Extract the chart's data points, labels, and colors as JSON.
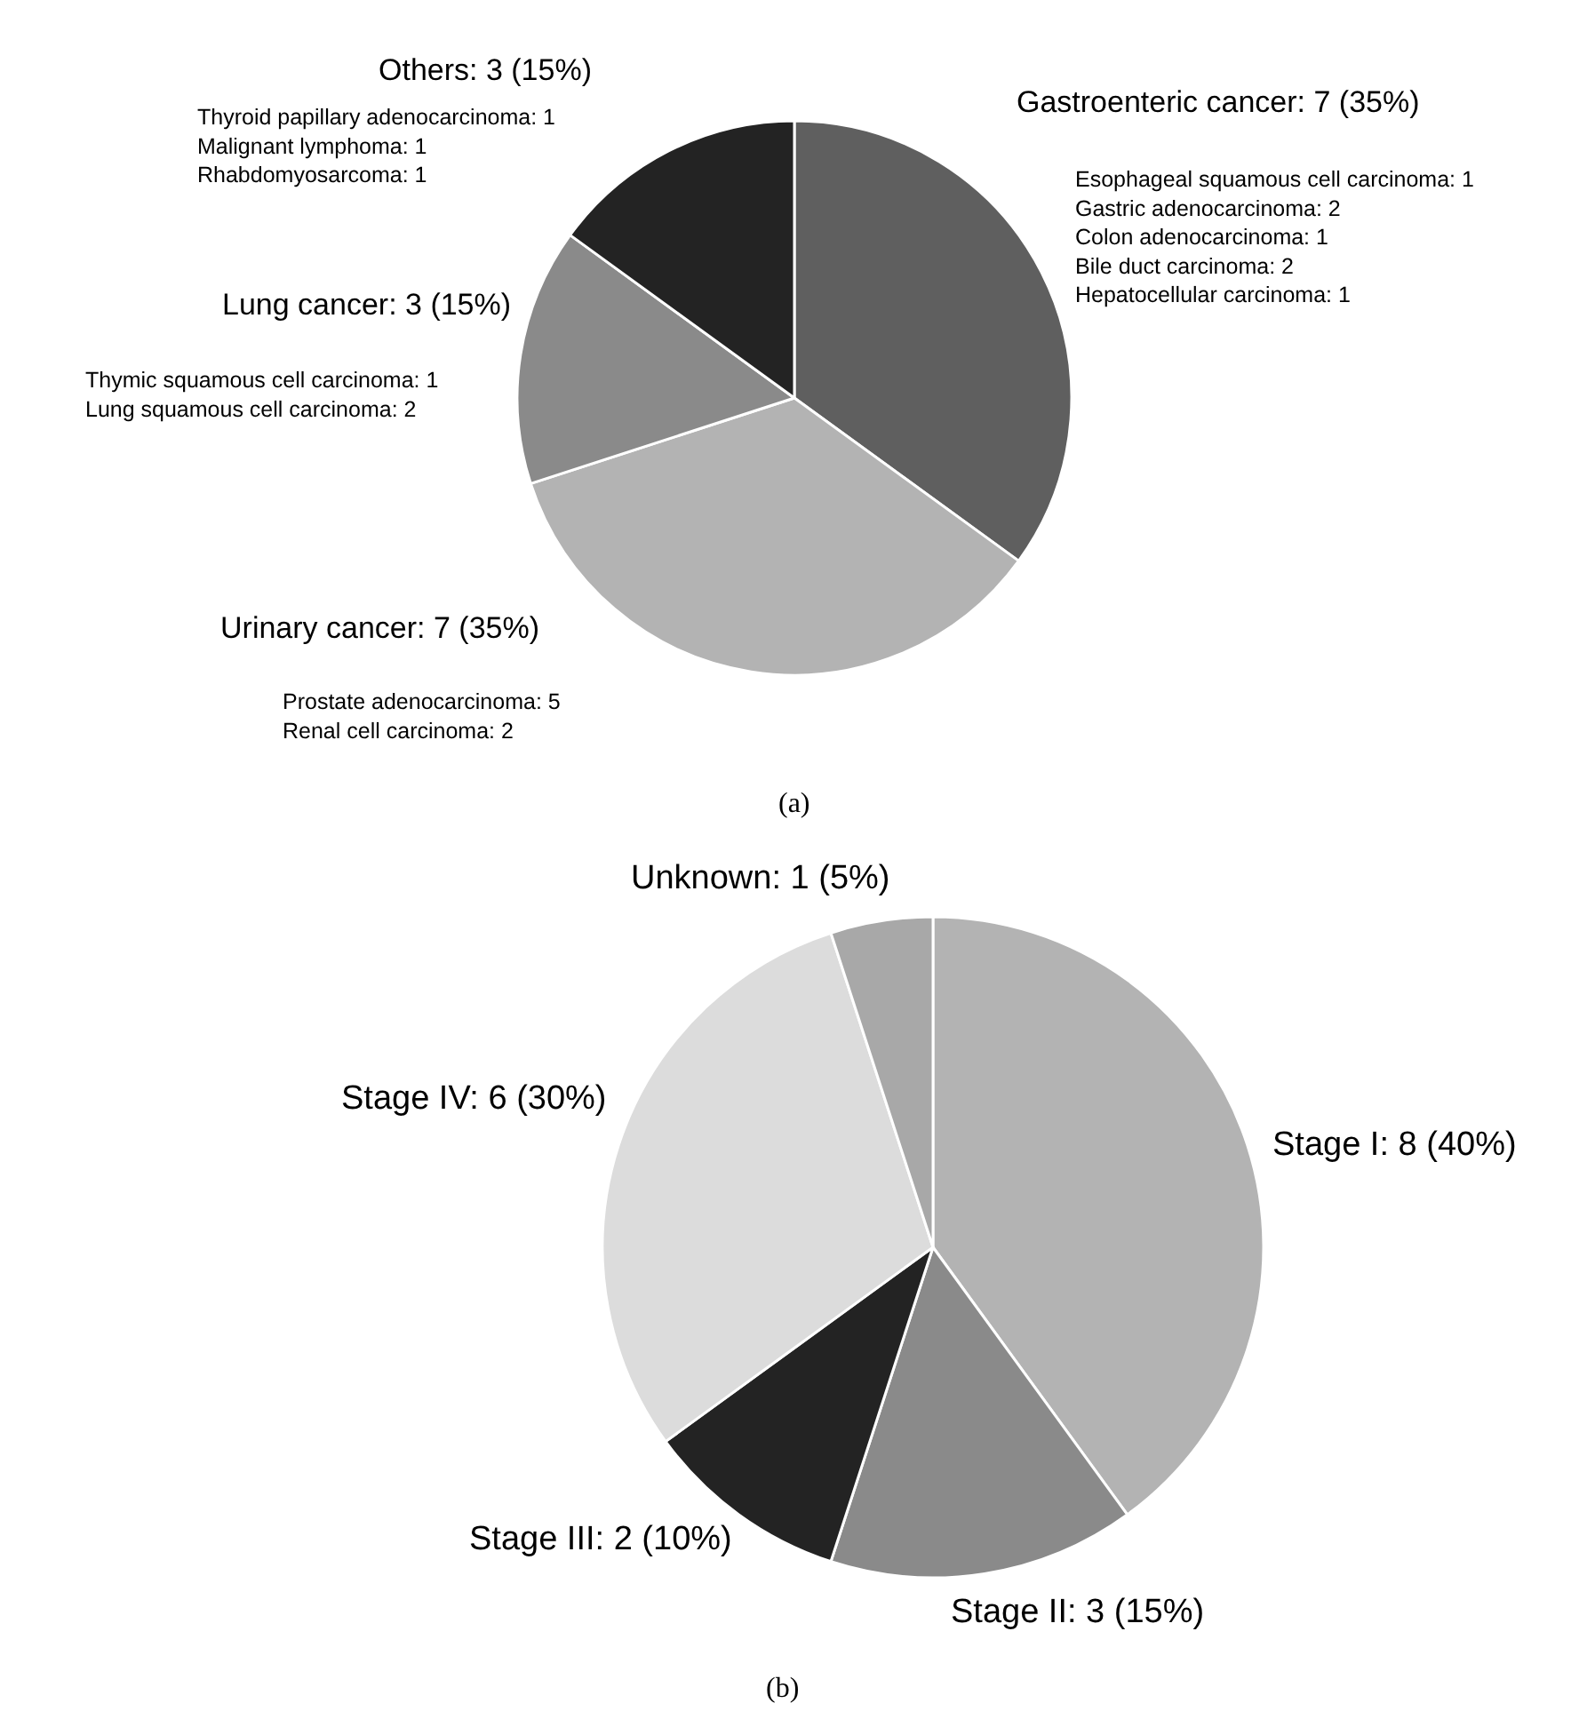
{
  "chart_data": [
    {
      "type": "pie",
      "categories": [
        "Gastroenteric cancer: 7 (35%)",
        "Urinary cancer: 7 (35%)",
        "Lung cancer: 3 (15%)",
        "Others: 3 (15%)"
      ],
      "values": [
        7,
        7,
        3,
        3
      ],
      "colors": [
        "#5f5f5f",
        "#b3b3b3",
        "#8a8a8a",
        "#232323"
      ],
      "annotations": [
        "Esophageal squamous cell carcinoma: 1\nGastric adenocarcinoma: 2\nColon adenocarcinoma: 1\nBile duct carcinoma: 2\nHepatocellular carcinoma: 1",
        "Prostate adenocarcinoma: 5\nRenal cell carcinoma: 2",
        "Thymic squamous cell carcinoma: 1\nLung squamous cell carcinoma: 2",
        "Thyroid papillary adenocarcinoma: 1\nMalignant lymphoma: 1\nRhabdomyosarcoma: 1",
        "(a)"
      ]
    },
    {
      "type": "pie",
      "categories": [
        "Stage I: 8 (40%)",
        "Stage II: 3 (15%)",
        "Stage III: 2 (10%)",
        "Stage IV: 6 (30%)",
        "Unknown: 1 (5%)"
      ],
      "values": [
        8,
        3,
        2,
        6,
        1
      ],
      "colors": [
        "#b3b3b3",
        "#8a8a8a",
        "#232323",
        "#dcdcdc",
        "#a8a8a8"
      ],
      "annotations": [
        "(b)"
      ]
    }
  ]
}
